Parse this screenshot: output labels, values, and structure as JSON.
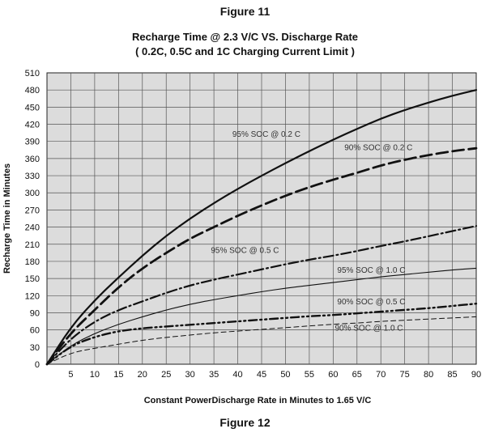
{
  "figure_top": "Figure 11",
  "figure_bottom": "Figure 12",
  "chart_data": {
    "type": "line",
    "title": "Recharge Time @ 2.3 V/C VS. Discharge Rate",
    "subtitle": "( 0.2C, 0.5C and 1C Charging Current Limit )",
    "xlabel": "Constant PowerDischarge Rate in Minutes to 1.65 V/C",
    "ylabel": "Recharge Time in Minutes",
    "xlim": [
      0,
      90
    ],
    "ylim": [
      0,
      510
    ],
    "xticks": [
      5,
      10,
      15,
      20,
      25,
      30,
      35,
      40,
      45,
      50,
      55,
      60,
      65,
      70,
      75,
      80,
      85,
      90
    ],
    "yticks": [
      0,
      30,
      60,
      90,
      120,
      150,
      180,
      210,
      240,
      270,
      300,
      330,
      360,
      390,
      420,
      450,
      480,
      510
    ],
    "grid": true,
    "series": [
      {
        "name": "95% SOC @ 0.2 C",
        "style": "solid-thick",
        "x": [
          0,
          5,
          10,
          15,
          20,
          25,
          30,
          35,
          40,
          45,
          50,
          55,
          60,
          65,
          70,
          75,
          80,
          85,
          90
        ],
        "y": [
          0,
          65,
          112,
          152,
          190,
          225,
          255,
          282,
          307,
          330,
          352,
          373,
          393,
          412,
          430,
          445,
          458,
          470,
          480
        ]
      },
      {
        "name": "90% SOC @ 0.2 C",
        "style": "dashed-thick",
        "x": [
          0,
          5,
          10,
          15,
          20,
          25,
          30,
          35,
          40,
          45,
          50,
          55,
          60,
          65,
          70,
          75,
          80,
          85,
          90
        ],
        "y": [
          0,
          55,
          95,
          135,
          168,
          195,
          220,
          240,
          260,
          278,
          295,
          310,
          323,
          335,
          348,
          358,
          366,
          373,
          378
        ]
      },
      {
        "name": "95% SOC @ 0.5 C",
        "style": "dashdot",
        "x": [
          0,
          5,
          10,
          15,
          20,
          25,
          30,
          35,
          40,
          45,
          50,
          55,
          60,
          65,
          70,
          75,
          80,
          85,
          90
        ],
        "y": [
          0,
          45,
          75,
          95,
          110,
          125,
          138,
          148,
          157,
          166,
          175,
          183,
          190,
          198,
          207,
          215,
          224,
          233,
          242
        ]
      },
      {
        "name": "95% SOC @ 1.0 C",
        "style": "solid-thin",
        "x": [
          0,
          5,
          10,
          15,
          20,
          25,
          30,
          35,
          40,
          45,
          50,
          55,
          60,
          65,
          70,
          75,
          80,
          85,
          90
        ],
        "y": [
          0,
          33,
          54,
          70,
          83,
          95,
          105,
          113,
          120,
          127,
          133,
          138,
          143,
          148,
          153,
          157,
          161,
          165,
          168
        ]
      },
      {
        "name": "90% SOC @ 0.5 C",
        "style": "dashdotdot",
        "x": [
          0,
          5,
          10,
          15,
          20,
          25,
          30,
          35,
          40,
          45,
          50,
          55,
          60,
          65,
          70,
          75,
          80,
          85,
          90
        ],
        "y": [
          0,
          32,
          48,
          58,
          63,
          66,
          69,
          72,
          75,
          78,
          81,
          84,
          86,
          89,
          92,
          95,
          98,
          102,
          106
        ]
      },
      {
        "name": "90% SOC @ 1.0 C",
        "style": "dashed-thin",
        "x": [
          0,
          5,
          10,
          15,
          20,
          25,
          30,
          35,
          40,
          45,
          50,
          55,
          60,
          65,
          70,
          75,
          80,
          85,
          90
        ],
        "y": [
          0,
          20,
          28,
          35,
          42,
          47,
          51,
          55,
          58,
          61,
          64,
          67,
          70,
          72,
          75,
          77,
          79,
          81,
          83
        ]
      }
    ],
    "annotations": [
      {
        "text": "95% SOC @ 0.2 C",
        "x": 46,
        "y": 398
      },
      {
        "text": "90% SOC @ 0.2 C",
        "x": 69.5,
        "y": 375
      },
      {
        "text": "95% SOC @ 0.5 C",
        "x": 41.5,
        "y": 195
      },
      {
        "text": "95% SOC @ 1.0 C",
        "x": 68,
        "y": 160
      },
      {
        "text": "90% SOC @ 0.5 C",
        "x": 68,
        "y": 105
      },
      {
        "text": "90% SOC @ 1.0 C",
        "x": 67.5,
        "y": 59
      }
    ]
  }
}
